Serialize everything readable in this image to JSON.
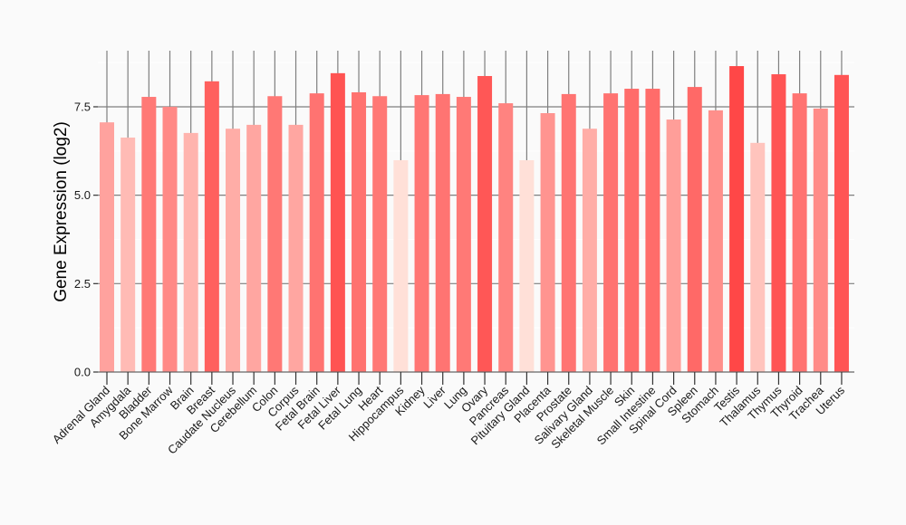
{
  "chart_data": {
    "type": "bar",
    "title": "",
    "xlabel": "",
    "ylabel": "Gene Expression (log2)",
    "ylim": [
      0,
      9.1
    ],
    "yticks": [
      "0.0",
      "2.5",
      "5.0",
      "7.5"
    ],
    "ytick_values": [
      0,
      2.5,
      5.0,
      7.5
    ],
    "grid": true,
    "legend": "none",
    "color_scale": {
      "low": "#FFE0D8",
      "high": "#FF4747",
      "min": 5.99,
      "max": 8.65
    },
    "categories": [
      "Adrenal Gland",
      "Amygdala",
      "Bladder",
      "Bone Marrow",
      "Brain",
      "Breast",
      "Caudate Nucleus",
      "Cerebellum",
      "Colon",
      "Corpus",
      "Fetal Brain",
      "Fetal Liver",
      "Fetal Lung",
      "Heart",
      "Hippocampus",
      "Kidney",
      "Liver",
      "Lung",
      "Ovary",
      "Pancreas",
      "Pituitary Gland",
      "Placenta",
      "Prostate",
      "Salivary Gland",
      "Skeletal Muscle",
      "Skin",
      "Small Intestine",
      "Spinal Cord",
      "Spleen",
      "Stomach",
      "Testis",
      "Thalamus",
      "Thymus",
      "Thyroid",
      "Trachea",
      "Uterus"
    ],
    "values": [
      7.06,
      6.63,
      7.78,
      7.5,
      6.76,
      8.22,
      6.88,
      6.99,
      7.8,
      6.99,
      7.88,
      8.45,
      7.91,
      7.8,
      5.99,
      7.83,
      7.86,
      7.78,
      8.37,
      7.6,
      5.99,
      7.32,
      7.86,
      6.88,
      7.88,
      8.01,
      8.01,
      7.14,
      8.06,
      7.4,
      8.65,
      6.48,
      8.42,
      7.88,
      7.45,
      8.4
    ]
  }
}
